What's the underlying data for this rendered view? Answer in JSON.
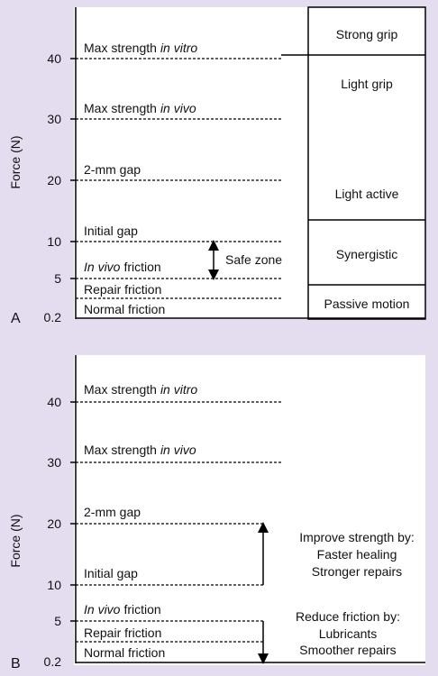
{
  "panel_a": {
    "label": "A",
    "axis_title": "Force (N)",
    "ticks": [
      40,
      30,
      20,
      10,
      5,
      0.2
    ],
    "lines": [
      [
        "Max strength",
        "in vitro"
      ],
      [
        "Max strength",
        "in vivo"
      ],
      [
        "2-mm gap"
      ],
      [
        "Initial gap"
      ],
      [
        "In vivo",
        "friction"
      ],
      [
        "Repair friction"
      ],
      [
        "Normal friction"
      ]
    ],
    "safe_zone": "Safe zone",
    "activities": [
      "Strong grip",
      "Light grip",
      "Light active",
      "Synergistic",
      "Passive motion"
    ]
  },
  "panel_b": {
    "label": "B",
    "axis_title": "Force (N)",
    "ticks": [
      40,
      30,
      20,
      10,
      5,
      0.2
    ],
    "lines": [
      [
        "Max strength",
        "in vitro"
      ],
      [
        "Max strength",
        "in vivo"
      ],
      [
        "2-mm gap"
      ],
      [
        "Initial gap"
      ],
      [
        "In vivo",
        "friction"
      ],
      [
        "Repair friction"
      ],
      [
        "Normal friction"
      ]
    ],
    "strength_note": [
      "Improve strength by:",
      "Faster healing",
      "Stronger repairs"
    ],
    "friction_note": [
      "Reduce friction by:",
      "Lubricants",
      "Smoother repairs"
    ]
  }
}
